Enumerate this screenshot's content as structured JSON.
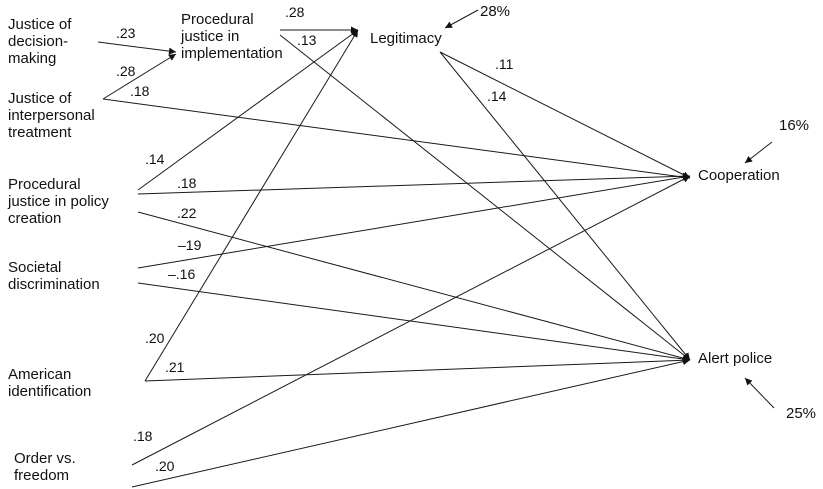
{
  "nodes": {
    "justice_decision": "Justice of\ndecision-\nmaking",
    "justice_interpersonal": "Justice of\ninterpersonal\ntreatment",
    "procedural_policy": "Procedural\njustice in policy\ncreation",
    "societal_discrimination": "Societal\ndiscrimination",
    "american_identification": "American\nidentification",
    "order_freedom": "Order vs.\nfreedom",
    "procedural_implementation": "Procedural\njustice in\nimplementation",
    "legitimacy": "Legitimacy",
    "cooperation": "Cooperation",
    "alert_police": "Alert police"
  },
  "variance_explained": {
    "legitimacy": "28%",
    "cooperation": "16%",
    "alert_police": "25%"
  },
  "coefficients": {
    "decision_to_implementation": ".23",
    "interpersonal_to_implementation": ".28",
    "interpersonal_to_cooperation": ".18",
    "implementation_to_legitimacy": ".28",
    "implementation_to_alert": ".13",
    "legitimacy_to_cooperation": ".11",
    "legitimacy_to_alert": ".14",
    "policy_to_legitimacy": ".14",
    "policy_to_cooperation": ".18",
    "policy_to_alert": ".22",
    "discrimination_to_cooperation": "–19",
    "discrimination_to_alert": "–.16",
    "american_to_legitimacy": ".20",
    "american_to_alert": ".21",
    "order_to_cooperation": ".18",
    "order_to_alert": ".20"
  }
}
